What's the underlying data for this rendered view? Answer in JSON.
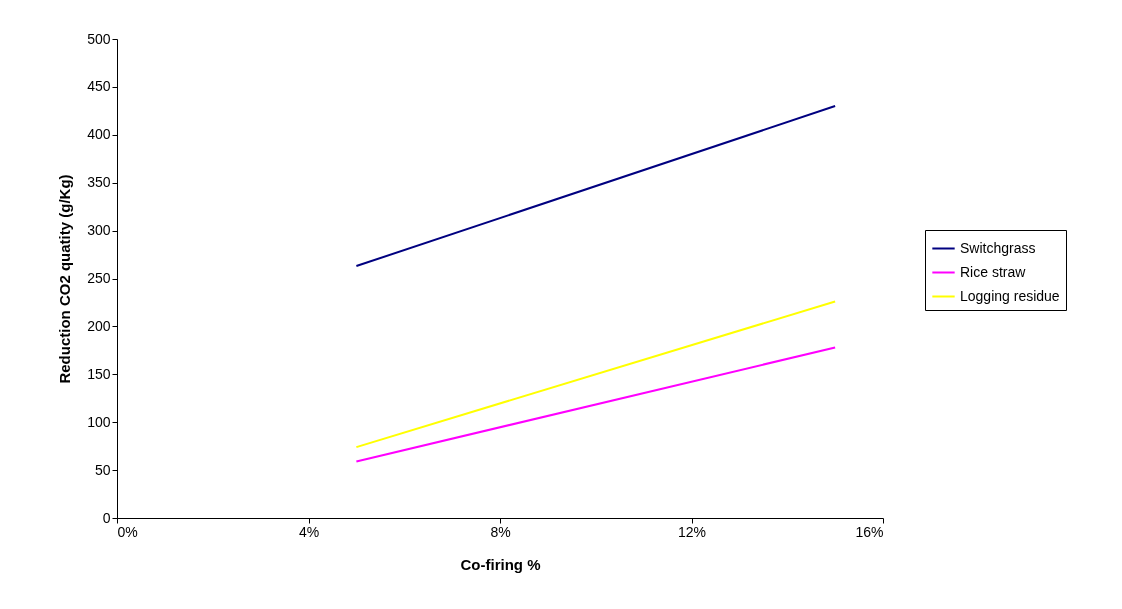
{
  "chart_data": {
    "type": "line",
    "xlabel": "Co-firing %",
    "ylabel": "Reduction CO2 quatity (g/Kg)",
    "x": [
      5,
      15
    ],
    "series": [
      {
        "name": "Switchgrass",
        "color": "#000080",
        "values": [
          263,
          430
        ]
      },
      {
        "name": "Rice straw",
        "color": "#ff00ff",
        "values": [
          59,
          178
        ]
      },
      {
        "name": "Logging residue",
        "color": "#ffff00",
        "values": [
          74,
          226
        ]
      }
    ],
    "xlim": [
      0,
      16
    ],
    "xticks": [
      {
        "value": 0,
        "label": "0%"
      },
      {
        "value": 4,
        "label": "4%"
      },
      {
        "value": 8,
        "label": "8%"
      },
      {
        "value": 12,
        "label": "12%"
      },
      {
        "value": 16,
        "label": "16%"
      }
    ],
    "ylim": [
      0,
      500
    ],
    "yticks": [
      0,
      50,
      100,
      150,
      200,
      250,
      300,
      350,
      400,
      450,
      500
    ],
    "legend": "right",
    "marker": "none",
    "line_style": "solid"
  }
}
